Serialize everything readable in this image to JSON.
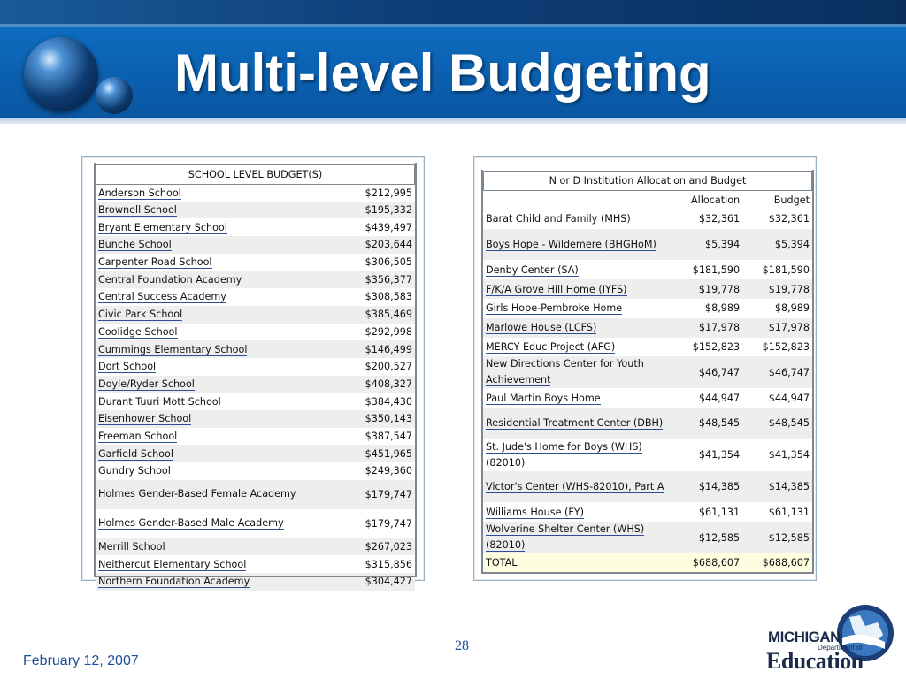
{
  "slide": {
    "title": "Multi-level Budgeting",
    "date": "February 12, 2007",
    "page_number": "28",
    "logo": {
      "line1": "MICHIGAN",
      "line2": "Department of",
      "line3": "Education"
    }
  },
  "school_table": {
    "header": "SCHOOL LEVEL BUDGET(S)",
    "rows": [
      {
        "name": "Anderson School",
        "amount": "$212,995"
      },
      {
        "name": "Brownell School",
        "amount": "$195,332"
      },
      {
        "name": "Bryant Elementary School",
        "amount": "$439,497"
      },
      {
        "name": "Bunche School",
        "amount": "$203,644"
      },
      {
        "name": "Carpenter Road School",
        "amount": "$306,505"
      },
      {
        "name": "Central Foundation Academy",
        "amount": "$356,377"
      },
      {
        "name": "Central Success Academy",
        "amount": "$308,583"
      },
      {
        "name": "Civic Park School",
        "amount": "$385,469"
      },
      {
        "name": "Coolidge School",
        "amount": "$292,998"
      },
      {
        "name": "Cummings Elementary School",
        "amount": "$146,499"
      },
      {
        "name": "Dort School",
        "amount": "$200,527"
      },
      {
        "name": "Doyle/Ryder School",
        "amount": "$408,327"
      },
      {
        "name": "Durant Tuuri Mott School",
        "amount": "$384,430"
      },
      {
        "name": "Eisenhower School",
        "amount": "$350,143"
      },
      {
        "name": "Freeman School",
        "amount": "$387,547"
      },
      {
        "name": "Garfield School",
        "amount": "$451,965"
      },
      {
        "name": "Gundry School",
        "amount": "$249,360"
      },
      {
        "name": "Holmes Gender-Based Female Academy",
        "amount": "$179,747"
      },
      {
        "name": "Holmes Gender-Based Male Academy",
        "amount": "$179,747"
      },
      {
        "name": "Merrill School",
        "amount": "$267,023"
      },
      {
        "name": "Neithercut Elementary School",
        "amount": "$315,856"
      },
      {
        "name": "Northern Foundation Academy",
        "amount": "$304,427"
      }
    ]
  },
  "institution_table": {
    "header": "N or D Institution Allocation and Budget",
    "col_allocation": "Allocation",
    "col_budget": "Budget",
    "rows": [
      {
        "name": "Barat Child and Family (MHS)",
        "allocation": "$32,361",
        "budget": "$32,361"
      },
      {
        "name": "Boys Hope - Wildemere (BHGHoM)",
        "allocation": "$5,394",
        "budget": "$5,394"
      },
      {
        "name": "Denby Center (SA)",
        "allocation": "$181,590",
        "budget": "$181,590"
      },
      {
        "name": "F/K/A Grove Hill Home (IYFS)",
        "allocation": "$19,778",
        "budget": "$19,778"
      },
      {
        "name": "Girls Hope-Pembroke Home",
        "allocation": "$8,989",
        "budget": "$8,989"
      },
      {
        "name": "Marlowe House (LCFS)",
        "allocation": "$17,978",
        "budget": "$17,978"
      },
      {
        "name": "MERCY Educ Project (AFG)",
        "allocation": "$152,823",
        "budget": "$152,823"
      },
      {
        "name": "New Directions Center for Youth Achievement",
        "allocation": "$46,747",
        "budget": "$46,747"
      },
      {
        "name": "Paul Martin Boys Home",
        "allocation": "$44,947",
        "budget": "$44,947"
      },
      {
        "name": "Residential Treatment Center (DBH)",
        "allocation": "$48,545",
        "budget": "$48,545"
      },
      {
        "name": "St. Jude's Home for Boys (WHS)(82010)",
        "allocation": "$41,354",
        "budget": "$41,354"
      },
      {
        "name": "Victor's Center (WHS-82010), Part A",
        "allocation": "$14,385",
        "budget": "$14,385"
      },
      {
        "name": "Williams House (FY)",
        "allocation": "$61,131",
        "budget": "$61,131"
      },
      {
        "name": "Wolverine Shelter Center (WHS)(82010)",
        "allocation": "$12,585",
        "budget": "$12,585"
      }
    ],
    "total": {
      "label": "TOTAL",
      "allocation": "$688,607",
      "budget": "$688,607"
    }
  }
}
